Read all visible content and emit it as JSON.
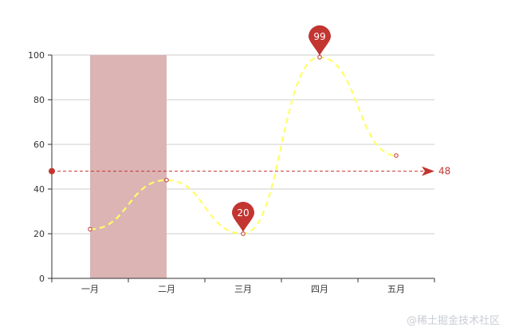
{
  "chart_data": {
    "type": "line",
    "smooth": true,
    "categories": [
      "一月",
      "二月",
      "三月",
      "四月",
      "五月"
    ],
    "series": [
      {
        "values": [
          22,
          44,
          20,
          99,
          55
        ]
      }
    ],
    "ylim": [
      0,
      100
    ],
    "yticks": [
      0,
      20,
      40,
      60,
      80,
      100
    ],
    "grid": "horizontal",
    "mark_points": [
      {
        "category": "三月",
        "value": 20,
        "label": "20"
      },
      {
        "category": "四月",
        "value": 99,
        "label": "99"
      }
    ],
    "mark_line": {
      "value": 48,
      "label": "48"
    },
    "mark_area": {
      "from": "一月",
      "to": "二月"
    },
    "colors": {
      "line": "#ffff66",
      "point_border": "#c23531",
      "marker": "#c23531",
      "area": "#dcb4b4",
      "grid": "#cccccc",
      "axis": "#333333"
    }
  },
  "watermark": "@稀土掘金技术社区"
}
